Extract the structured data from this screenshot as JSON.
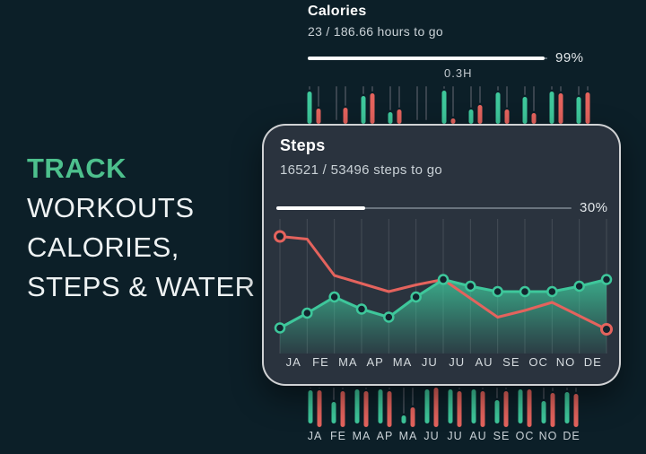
{
  "headline": {
    "title": "TRACK",
    "lines": [
      "WORKOUTS",
      "CALORIES,",
      "STEPS & WATER"
    ]
  },
  "calories": {
    "title": "Calories",
    "subtitle": "23 / 186.66 hours to go",
    "percent": 99,
    "percent_label": "99%",
    "time_marker": "0.3H"
  },
  "steps": {
    "title": "Steps",
    "subtitle": "16521 / 53496 steps to go",
    "percent": 30,
    "percent_label": "30%"
  },
  "chart_data": {
    "type": "line",
    "title": "Steps",
    "categories": [
      "JA",
      "FE",
      "MA",
      "AP",
      "MA",
      "JU",
      "JU",
      "AU",
      "SE",
      "OC",
      "NO",
      "DE"
    ],
    "labels_between_points": true,
    "grid": "vertical",
    "ylim": [
      0,
      100
    ],
    "series": [
      {
        "name": "steps",
        "color": "#3ec79b",
        "area": true,
        "markers": "all",
        "values": [
          19,
          30,
          42,
          33,
          27,
          42,
          55,
          50,
          46,
          46,
          46,
          50,
          55
        ]
      },
      {
        "name": "calories",
        "color": "#e4635d",
        "area": false,
        "markers": "ends",
        "values": [
          87,
          85,
          58,
          52,
          46,
          51,
          55,
          41,
          27,
          32,
          38,
          28,
          18
        ]
      }
    ]
  },
  "ticker_top": {
    "slots": [
      [
        36,
        17
      ],
      [
        0,
        18
      ],
      [
        31,
        34
      ],
      [
        13,
        16
      ],
      [
        0,
        0
      ],
      [
        37,
        6
      ],
      [
        16,
        21
      ],
      [
        35,
        16
      ],
      [
        30,
        12
      ],
      [
        36,
        34
      ],
      [
        30,
        35
      ]
    ]
  },
  "ticker_bottom": {
    "labels": [
      "JA",
      "FE",
      "MA",
      "AP",
      "MA",
      "JU",
      "JU",
      "AU",
      "SE",
      "OC",
      "NO",
      "DE"
    ],
    "slots": [
      [
        37,
        41
      ],
      [
        24,
        40
      ],
      [
        38,
        40
      ],
      [
        38,
        40
      ],
      [
        9,
        22
      ],
      [
        38,
        44
      ],
      [
        38,
        40
      ],
      [
        38,
        40
      ],
      [
        26,
        40
      ],
      [
        38,
        42
      ],
      [
        25,
        38
      ],
      [
        35,
        37
      ]
    ]
  },
  "colors": {
    "background": "#0c1f28",
    "card": "#2a333e",
    "card_border": "rgba(255,255,255,0.78)",
    "headline_green": "#4dc08d",
    "green": "#3ec79b",
    "red": "#e4635d",
    "white": "#ffffff",
    "text_secondary": "#c9d1d6",
    "progress_track": "#76808a",
    "wick": "#39444e",
    "grid": "rgba(255,255,255,0.13)",
    "marker_fill": "#13242e",
    "month_label": "#d5dbdf"
  }
}
